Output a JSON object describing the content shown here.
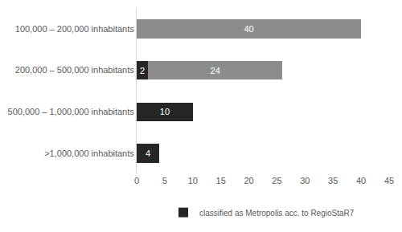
{
  "chart_data": {
    "type": "bar",
    "orientation": "horizontal",
    "stacked": true,
    "categories": [
      "100,000 – 200,000 inhabitants",
      "200,000 – 500,000 inhabitants",
      "500,000 – 1,000,000 inhabitants",
      ">1,000,000 inhabitants"
    ],
    "series": [
      {
        "name": "classified as Metropolis acc. to RegioStaR7",
        "color": "#262626",
        "values": [
          null,
          2,
          10,
          4
        ]
      },
      {
        "color": "#8c8c8c",
        "values": [
          40,
          24,
          null,
          null
        ]
      }
    ],
    "xlim": [
      0,
      45
    ],
    "xticks": [
      0,
      5,
      10,
      15,
      20,
      25,
      30,
      35,
      40,
      45
    ],
    "grid": false,
    "legend": "bottom",
    "data_labels": true
  }
}
